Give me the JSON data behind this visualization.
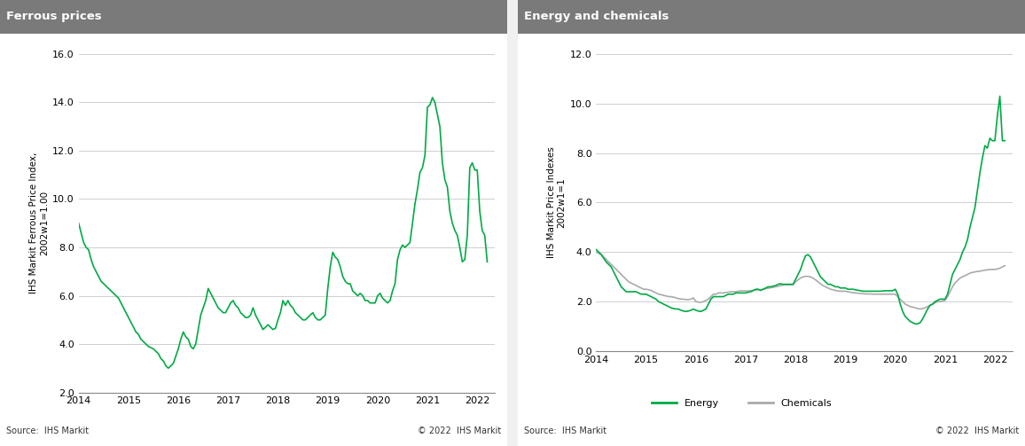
{
  "ferrous_title": "Ferrous prices",
  "energy_title": "Energy and chemicals",
  "ferrous_ylabel": "IHS Markit Ferrous Price Index,\n2002w1=1.00",
  "energy_ylabel": "IHS Markit Price Indexes\n2002w1=1",
  "source_text": "Source:  IHS Markit",
  "copyright_text": "© 2022  IHS Markit",
  "header_color": "#808080",
  "header_text_color": "#ffffff",
  "line_color_green": "#00AA44",
  "line_color_gray": "#AAAAAA",
  "background_color": "#f0f0f0",
  "plot_bg_color": "#ffffff",
  "grid_color": "#CCCCCC",
  "ferrous_ylim": [
    2.0,
    16.0
  ],
  "ferrous_yticks": [
    2.0,
    4.0,
    6.0,
    8.0,
    10.0,
    12.0,
    14.0,
    16.0
  ],
  "energy_ylim": [
    0.0,
    12.0
  ],
  "energy_yticks": [
    0.0,
    2.0,
    4.0,
    6.0,
    8.0,
    10.0,
    12.0
  ],
  "ferrous_data": {
    "t": [
      2014.0,
      2014.05,
      2014.1,
      2014.15,
      2014.2,
      2014.25,
      2014.3,
      2014.35,
      2014.4,
      2014.45,
      2014.5,
      2014.55,
      2014.6,
      2014.65,
      2014.7,
      2014.75,
      2014.8,
      2014.85,
      2014.9,
      2014.95,
      2015.0,
      2015.05,
      2015.1,
      2015.15,
      2015.2,
      2015.25,
      2015.3,
      2015.35,
      2015.4,
      2015.45,
      2015.5,
      2015.55,
      2015.6,
      2015.65,
      2015.7,
      2015.75,
      2015.8,
      2015.85,
      2015.9,
      2015.95,
      2016.0,
      2016.05,
      2016.1,
      2016.15,
      2016.2,
      2016.25,
      2016.3,
      2016.35,
      2016.4,
      2016.45,
      2016.5,
      2016.55,
      2016.6,
      2016.65,
      2016.7,
      2016.75,
      2016.8,
      2016.85,
      2016.9,
      2016.95,
      2017.0,
      2017.05,
      2017.1,
      2017.15,
      2017.2,
      2017.25,
      2017.3,
      2017.35,
      2017.4,
      2017.45,
      2017.5,
      2017.55,
      2017.6,
      2017.65,
      2017.7,
      2017.75,
      2017.8,
      2017.85,
      2017.9,
      2017.95,
      2018.0,
      2018.05,
      2018.1,
      2018.15,
      2018.2,
      2018.25,
      2018.3,
      2018.35,
      2018.4,
      2018.45,
      2018.5,
      2018.55,
      2018.6,
      2018.65,
      2018.7,
      2018.75,
      2018.8,
      2018.85,
      2018.9,
      2018.95,
      2019.0,
      2019.05,
      2019.1,
      2019.15,
      2019.2,
      2019.25,
      2019.3,
      2019.35,
      2019.4,
      2019.45,
      2019.5,
      2019.55,
      2019.6,
      2019.65,
      2019.7,
      2019.75,
      2019.8,
      2019.85,
      2019.9,
      2019.95,
      2020.0,
      2020.05,
      2020.1,
      2020.15,
      2020.2,
      2020.25,
      2020.3,
      2020.35,
      2020.4,
      2020.45,
      2020.5,
      2020.55,
      2020.6,
      2020.65,
      2020.7,
      2020.75,
      2020.8,
      2020.85,
      2020.9,
      2020.95,
      2021.0,
      2021.05,
      2021.1,
      2021.15,
      2021.2,
      2021.25,
      2021.3,
      2021.35,
      2021.4,
      2021.45,
      2021.5,
      2021.55,
      2021.6,
      2021.65,
      2021.7,
      2021.75,
      2021.8,
      2021.85,
      2021.9,
      2021.95,
      2022.0,
      2022.05,
      2022.1,
      2022.15,
      2022.2
    ],
    "v": [
      9.0,
      8.6,
      8.2,
      8.0,
      7.9,
      7.5,
      7.2,
      7.0,
      6.8,
      6.6,
      6.5,
      6.4,
      6.3,
      6.2,
      6.1,
      6.0,
      5.9,
      5.7,
      5.5,
      5.3,
      5.1,
      4.9,
      4.7,
      4.5,
      4.4,
      4.2,
      4.1,
      4.0,
      3.9,
      3.85,
      3.8,
      3.7,
      3.6,
      3.4,
      3.3,
      3.1,
      3.0,
      3.1,
      3.2,
      3.5,
      3.8,
      4.2,
      4.5,
      4.3,
      4.2,
      3.9,
      3.8,
      4.0,
      4.6,
      5.2,
      5.5,
      5.8,
      6.3,
      6.1,
      5.9,
      5.7,
      5.5,
      5.4,
      5.3,
      5.3,
      5.5,
      5.7,
      5.8,
      5.6,
      5.5,
      5.3,
      5.2,
      5.1,
      5.1,
      5.2,
      5.5,
      5.2,
      5.0,
      4.8,
      4.6,
      4.7,
      4.8,
      4.7,
      4.6,
      4.65,
      5.0,
      5.3,
      5.8,
      5.6,
      5.8,
      5.6,
      5.5,
      5.3,
      5.2,
      5.1,
      5.0,
      5.0,
      5.1,
      5.2,
      5.3,
      5.1,
      5.0,
      5.0,
      5.1,
      5.2,
      6.3,
      7.2,
      7.8,
      7.6,
      7.5,
      7.2,
      6.8,
      6.6,
      6.5,
      6.5,
      6.2,
      6.1,
      6.0,
      6.1,
      6.0,
      5.8,
      5.8,
      5.7,
      5.7,
      5.7,
      6.0,
      6.1,
      5.9,
      5.8,
      5.7,
      5.8,
      6.2,
      6.5,
      7.5,
      7.9,
      8.1,
      8.0,
      8.1,
      8.2,
      9.0,
      9.8,
      10.4,
      11.1,
      11.3,
      11.8,
      13.8,
      13.9,
      14.2,
      14.0,
      13.5,
      13.0,
      11.5,
      10.8,
      10.5,
      9.5,
      9.0,
      8.7,
      8.5,
      8.0,
      7.4,
      7.5,
      8.5,
      11.3,
      11.5,
      11.2,
      11.2,
      9.5,
      8.7,
      8.5,
      7.4
    ]
  },
  "energy_data": {
    "t": [
      2014.0,
      2014.05,
      2014.1,
      2014.15,
      2014.2,
      2014.25,
      2014.3,
      2014.35,
      2014.4,
      2014.45,
      2014.5,
      2014.55,
      2014.6,
      2014.65,
      2014.7,
      2014.75,
      2014.8,
      2014.85,
      2014.9,
      2014.95,
      2015.0,
      2015.05,
      2015.1,
      2015.15,
      2015.2,
      2015.25,
      2015.3,
      2015.35,
      2015.4,
      2015.45,
      2015.5,
      2015.55,
      2015.6,
      2015.65,
      2015.7,
      2015.75,
      2015.8,
      2015.85,
      2015.9,
      2015.95,
      2016.0,
      2016.05,
      2016.1,
      2016.15,
      2016.2,
      2016.25,
      2016.3,
      2016.35,
      2016.4,
      2016.45,
      2016.5,
      2016.55,
      2016.6,
      2016.65,
      2016.7,
      2016.75,
      2016.8,
      2016.85,
      2016.9,
      2016.95,
      2017.0,
      2017.05,
      2017.1,
      2017.15,
      2017.2,
      2017.25,
      2017.3,
      2017.35,
      2017.4,
      2017.45,
      2017.5,
      2017.55,
      2017.6,
      2017.65,
      2017.7,
      2017.75,
      2017.8,
      2017.85,
      2017.9,
      2017.95,
      2018.0,
      2018.05,
      2018.1,
      2018.15,
      2018.2,
      2018.25,
      2018.3,
      2018.35,
      2018.4,
      2018.45,
      2018.5,
      2018.55,
      2018.6,
      2018.65,
      2018.7,
      2018.75,
      2018.8,
      2018.85,
      2018.9,
      2018.95,
      2019.0,
      2019.05,
      2019.1,
      2019.15,
      2019.2,
      2019.25,
      2019.3,
      2019.35,
      2019.4,
      2019.45,
      2019.5,
      2019.55,
      2019.6,
      2019.65,
      2019.7,
      2019.75,
      2019.8,
      2019.85,
      2019.9,
      2019.95,
      2020.0,
      2020.05,
      2020.1,
      2020.15,
      2020.2,
      2020.25,
      2020.3,
      2020.35,
      2020.4,
      2020.45,
      2020.5,
      2020.55,
      2020.6,
      2020.65,
      2020.7,
      2020.75,
      2020.8,
      2020.85,
      2020.9,
      2020.95,
      2021.0,
      2021.05,
      2021.1,
      2021.15,
      2021.2,
      2021.25,
      2021.3,
      2021.35,
      2021.4,
      2021.45,
      2021.5,
      2021.55,
      2021.6,
      2021.65,
      2021.7,
      2021.75,
      2021.8,
      2021.85,
      2021.9,
      2021.95,
      2022.0,
      2022.05,
      2022.1,
      2022.15,
      2022.2
    ],
    "energy": [
      4.1,
      4.0,
      3.9,
      3.75,
      3.6,
      3.5,
      3.4,
      3.2,
      3.0,
      2.8,
      2.6,
      2.5,
      2.4,
      2.4,
      2.4,
      2.4,
      2.4,
      2.35,
      2.3,
      2.3,
      2.3,
      2.25,
      2.2,
      2.15,
      2.1,
      2.0,
      1.95,
      1.9,
      1.85,
      1.8,
      1.75,
      1.72,
      1.7,
      1.7,
      1.65,
      1.62,
      1.6,
      1.62,
      1.65,
      1.7,
      1.65,
      1.62,
      1.6,
      1.65,
      1.7,
      1.9,
      2.1,
      2.2,
      2.2,
      2.2,
      2.2,
      2.2,
      2.25,
      2.3,
      2.3,
      2.3,
      2.35,
      2.35,
      2.35,
      2.35,
      2.35,
      2.38,
      2.4,
      2.45,
      2.5,
      2.5,
      2.45,
      2.5,
      2.55,
      2.6,
      2.6,
      2.62,
      2.65,
      2.7,
      2.72,
      2.7,
      2.7,
      2.7,
      2.7,
      2.7,
      2.9,
      3.1,
      3.3,
      3.6,
      3.85,
      3.9,
      3.8,
      3.6,
      3.4,
      3.2,
      3.0,
      2.9,
      2.8,
      2.7,
      2.7,
      2.65,
      2.6,
      2.6,
      2.55,
      2.55,
      2.55,
      2.5,
      2.5,
      2.5,
      2.48,
      2.46,
      2.44,
      2.42,
      2.42,
      2.42,
      2.42,
      2.42,
      2.42,
      2.42,
      2.42,
      2.43,
      2.44,
      2.44,
      2.44,
      2.44,
      2.5,
      2.3,
      1.9,
      1.6,
      1.4,
      1.3,
      1.2,
      1.15,
      1.1,
      1.1,
      1.15,
      1.3,
      1.5,
      1.7,
      1.85,
      1.9,
      2.0,
      2.05,
      2.1,
      2.1,
      2.1,
      2.3,
      2.7,
      3.1,
      3.3,
      3.5,
      3.7,
      4.0,
      4.2,
      4.5,
      5.0,
      5.4,
      5.8,
      6.5,
      7.2,
      7.8,
      8.3,
      8.2,
      8.6,
      8.5,
      8.5,
      9.5,
      10.3,
      8.5,
      8.5
    ],
    "chemicals": [
      4.0,
      3.95,
      3.9,
      3.8,
      3.7,
      3.6,
      3.5,
      3.4,
      3.3,
      3.2,
      3.1,
      3.0,
      2.9,
      2.8,
      2.75,
      2.7,
      2.65,
      2.6,
      2.55,
      2.5,
      2.5,
      2.48,
      2.45,
      2.4,
      2.35,
      2.3,
      2.28,
      2.25,
      2.23,
      2.2,
      2.2,
      2.18,
      2.15,
      2.12,
      2.1,
      2.1,
      2.08,
      2.08,
      2.1,
      2.15,
      2.0,
      1.98,
      1.97,
      2.0,
      2.05,
      2.1,
      2.2,
      2.3,
      2.3,
      2.35,
      2.35,
      2.35,
      2.37,
      2.38,
      2.4,
      2.4,
      2.4,
      2.42,
      2.43,
      2.43,
      2.43,
      2.43,
      2.44,
      2.45,
      2.47,
      2.48,
      2.48,
      2.5,
      2.52,
      2.54,
      2.56,
      2.58,
      2.6,
      2.62,
      2.65,
      2.67,
      2.68,
      2.68,
      2.68,
      2.68,
      2.8,
      2.88,
      2.95,
      3.0,
      3.02,
      3.02,
      3.0,
      2.95,
      2.88,
      2.8,
      2.72,
      2.65,
      2.6,
      2.55,
      2.5,
      2.48,
      2.45,
      2.43,
      2.42,
      2.42,
      2.42,
      2.4,
      2.38,
      2.36,
      2.35,
      2.34,
      2.33,
      2.32,
      2.31,
      2.31,
      2.31,
      2.3,
      2.3,
      2.3,
      2.3,
      2.3,
      2.3,
      2.3,
      2.3,
      2.3,
      2.3,
      2.2,
      2.1,
      2.0,
      1.9,
      1.85,
      1.8,
      1.78,
      1.75,
      1.72,
      1.7,
      1.72,
      1.75,
      1.8,
      1.85,
      1.9,
      1.95,
      2.0,
      2.0,
      2.02,
      2.05,
      2.2,
      2.4,
      2.6,
      2.75,
      2.85,
      2.95,
      3.0,
      3.05,
      3.1,
      3.15,
      3.18,
      3.2,
      3.22,
      3.23,
      3.25,
      3.27,
      3.28,
      3.3,
      3.3,
      3.3,
      3.32,
      3.35,
      3.4,
      3.45
    ]
  }
}
